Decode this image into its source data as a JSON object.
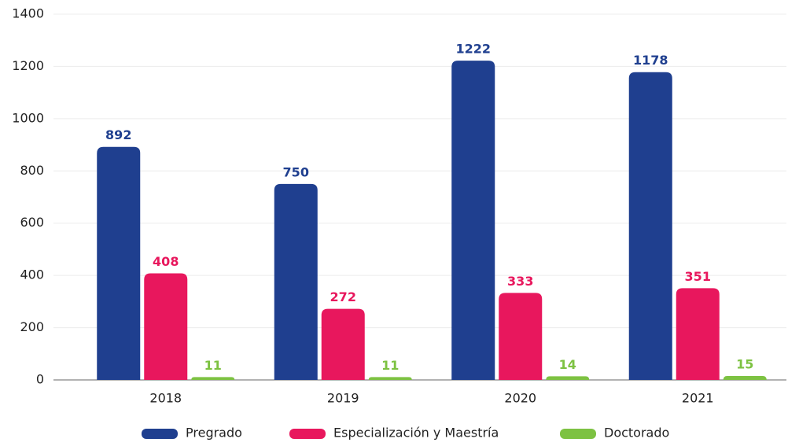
{
  "chart_data": {
    "type": "bar",
    "categories": [
      "2018",
      "2019",
      "2020",
      "2021"
    ],
    "series": [
      {
        "name": "Pregrado",
        "color": "#1f3f8f",
        "values": [
          892,
          750,
          1222,
          1178
        ]
      },
      {
        "name": "Especialización y Maestría",
        "color": "#e8175d",
        "values": [
          408,
          272,
          333,
          351
        ]
      },
      {
        "name": "Doctorado",
        "color": "#7dc242",
        "values": [
          11,
          11,
          14,
          15
        ]
      }
    ],
    "ylim": [
      0,
      1400
    ],
    "yticks": [
      0,
      200,
      400,
      600,
      800,
      1000,
      1200,
      1400
    ],
    "grid": true,
    "legend": "bottom"
  }
}
